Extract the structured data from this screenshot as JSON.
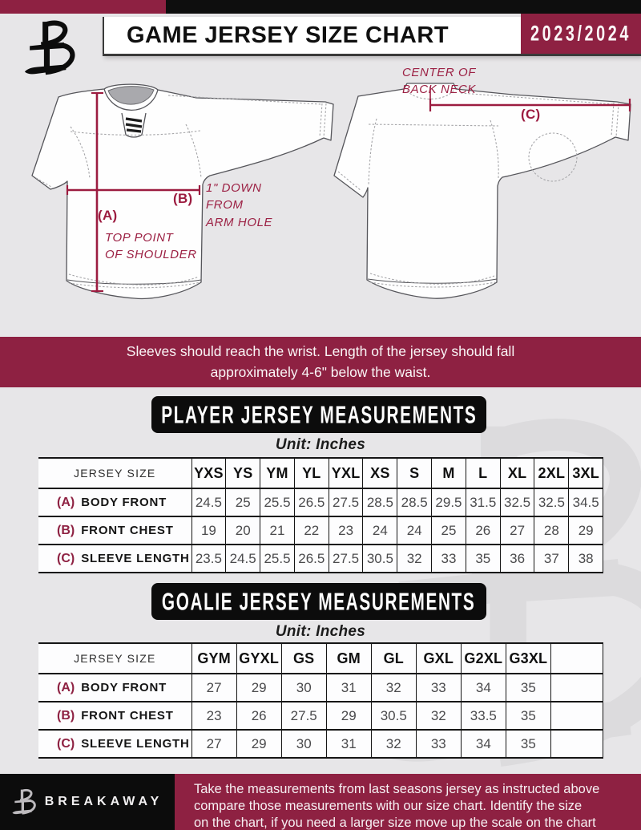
{
  "header": {
    "title": "GAME JERSEY SIZE CHART",
    "season": "2023/2024"
  },
  "diagram": {
    "front": {
      "a_key": "(A)",
      "a_desc": "TOP POINT\nOF SHOULDER",
      "b_key": "(B)",
      "b_desc": "1\" DOWN\nFROM\nARM HOLE"
    },
    "back": {
      "c_key": "(C)",
      "c_desc": "CENTER OF\nBACK NECK"
    }
  },
  "notice": "Sleeves should reach the wrist. Length of the jersey should fall\napproximately 4-6\" below the waist.",
  "player_table": {
    "title": "PLAYER JERSEY MEASUREMENTS",
    "unit": "Unit: Inches",
    "size_header": "JERSEY SIZE",
    "sizes": [
      "YXS",
      "YS",
      "YM",
      "YL",
      "YXL",
      "XS",
      "S",
      "M",
      "L",
      "XL",
      "2XL",
      "3XL"
    ],
    "rows": [
      {
        "key": "(A)",
        "label": "BODY FRONT",
        "values": [
          "24.5",
          "25",
          "25.5",
          "26.5",
          "27.5",
          "28.5",
          "28.5",
          "29.5",
          "31.5",
          "32.5",
          "32.5",
          "34.5"
        ]
      },
      {
        "key": "(B)",
        "label": "FRONT CHEST",
        "values": [
          "19",
          "20",
          "21",
          "22",
          "23",
          "24",
          "24",
          "25",
          "26",
          "27",
          "28",
          "29"
        ]
      },
      {
        "key": "(C)",
        "label": "SLEEVE LENGTH",
        "values": [
          "23.5",
          "24.5",
          "25.5",
          "26.5",
          "27.5",
          "30.5",
          "32",
          "33",
          "35",
          "36",
          "37",
          "38"
        ]
      }
    ]
  },
  "goalie_table": {
    "title": "GOALIE JERSEY MEASUREMENTS",
    "unit": "Unit: Inches",
    "size_header": "JERSEY SIZE",
    "sizes": [
      "GYM",
      "GYXL",
      "GS",
      "GM",
      "GL",
      "GXL",
      "G2XL",
      "G3XL"
    ],
    "rows": [
      {
        "key": "(A)",
        "label": "BODY FRONT",
        "values": [
          "27",
          "29",
          "30",
          "31",
          "32",
          "33",
          "34",
          "35"
        ]
      },
      {
        "key": "(B)",
        "label": "FRONT CHEST",
        "values": [
          "23",
          "26",
          "27.5",
          "29",
          "30.5",
          "32",
          "33.5",
          "35"
        ]
      },
      {
        "key": "(C)",
        "label": "SLEEVE LENGTH",
        "values": [
          "27",
          "29",
          "30",
          "31",
          "32",
          "33",
          "34",
          "35"
        ]
      }
    ]
  },
  "footer": {
    "brand": "BREAKAWAY",
    "note": "Take the measurements from last seasons jersey as instructed above\ncompare those measurements  with our size chart. Identify the size\non the chart, if you need a larger size move up the scale on the chart"
  },
  "colors": {
    "maroon": "#8E2142",
    "measure_line": "#9C1C40",
    "bar_black": "#0C0C0C",
    "page_bg": "#E7E6E8",
    "table_line": "#161616"
  }
}
